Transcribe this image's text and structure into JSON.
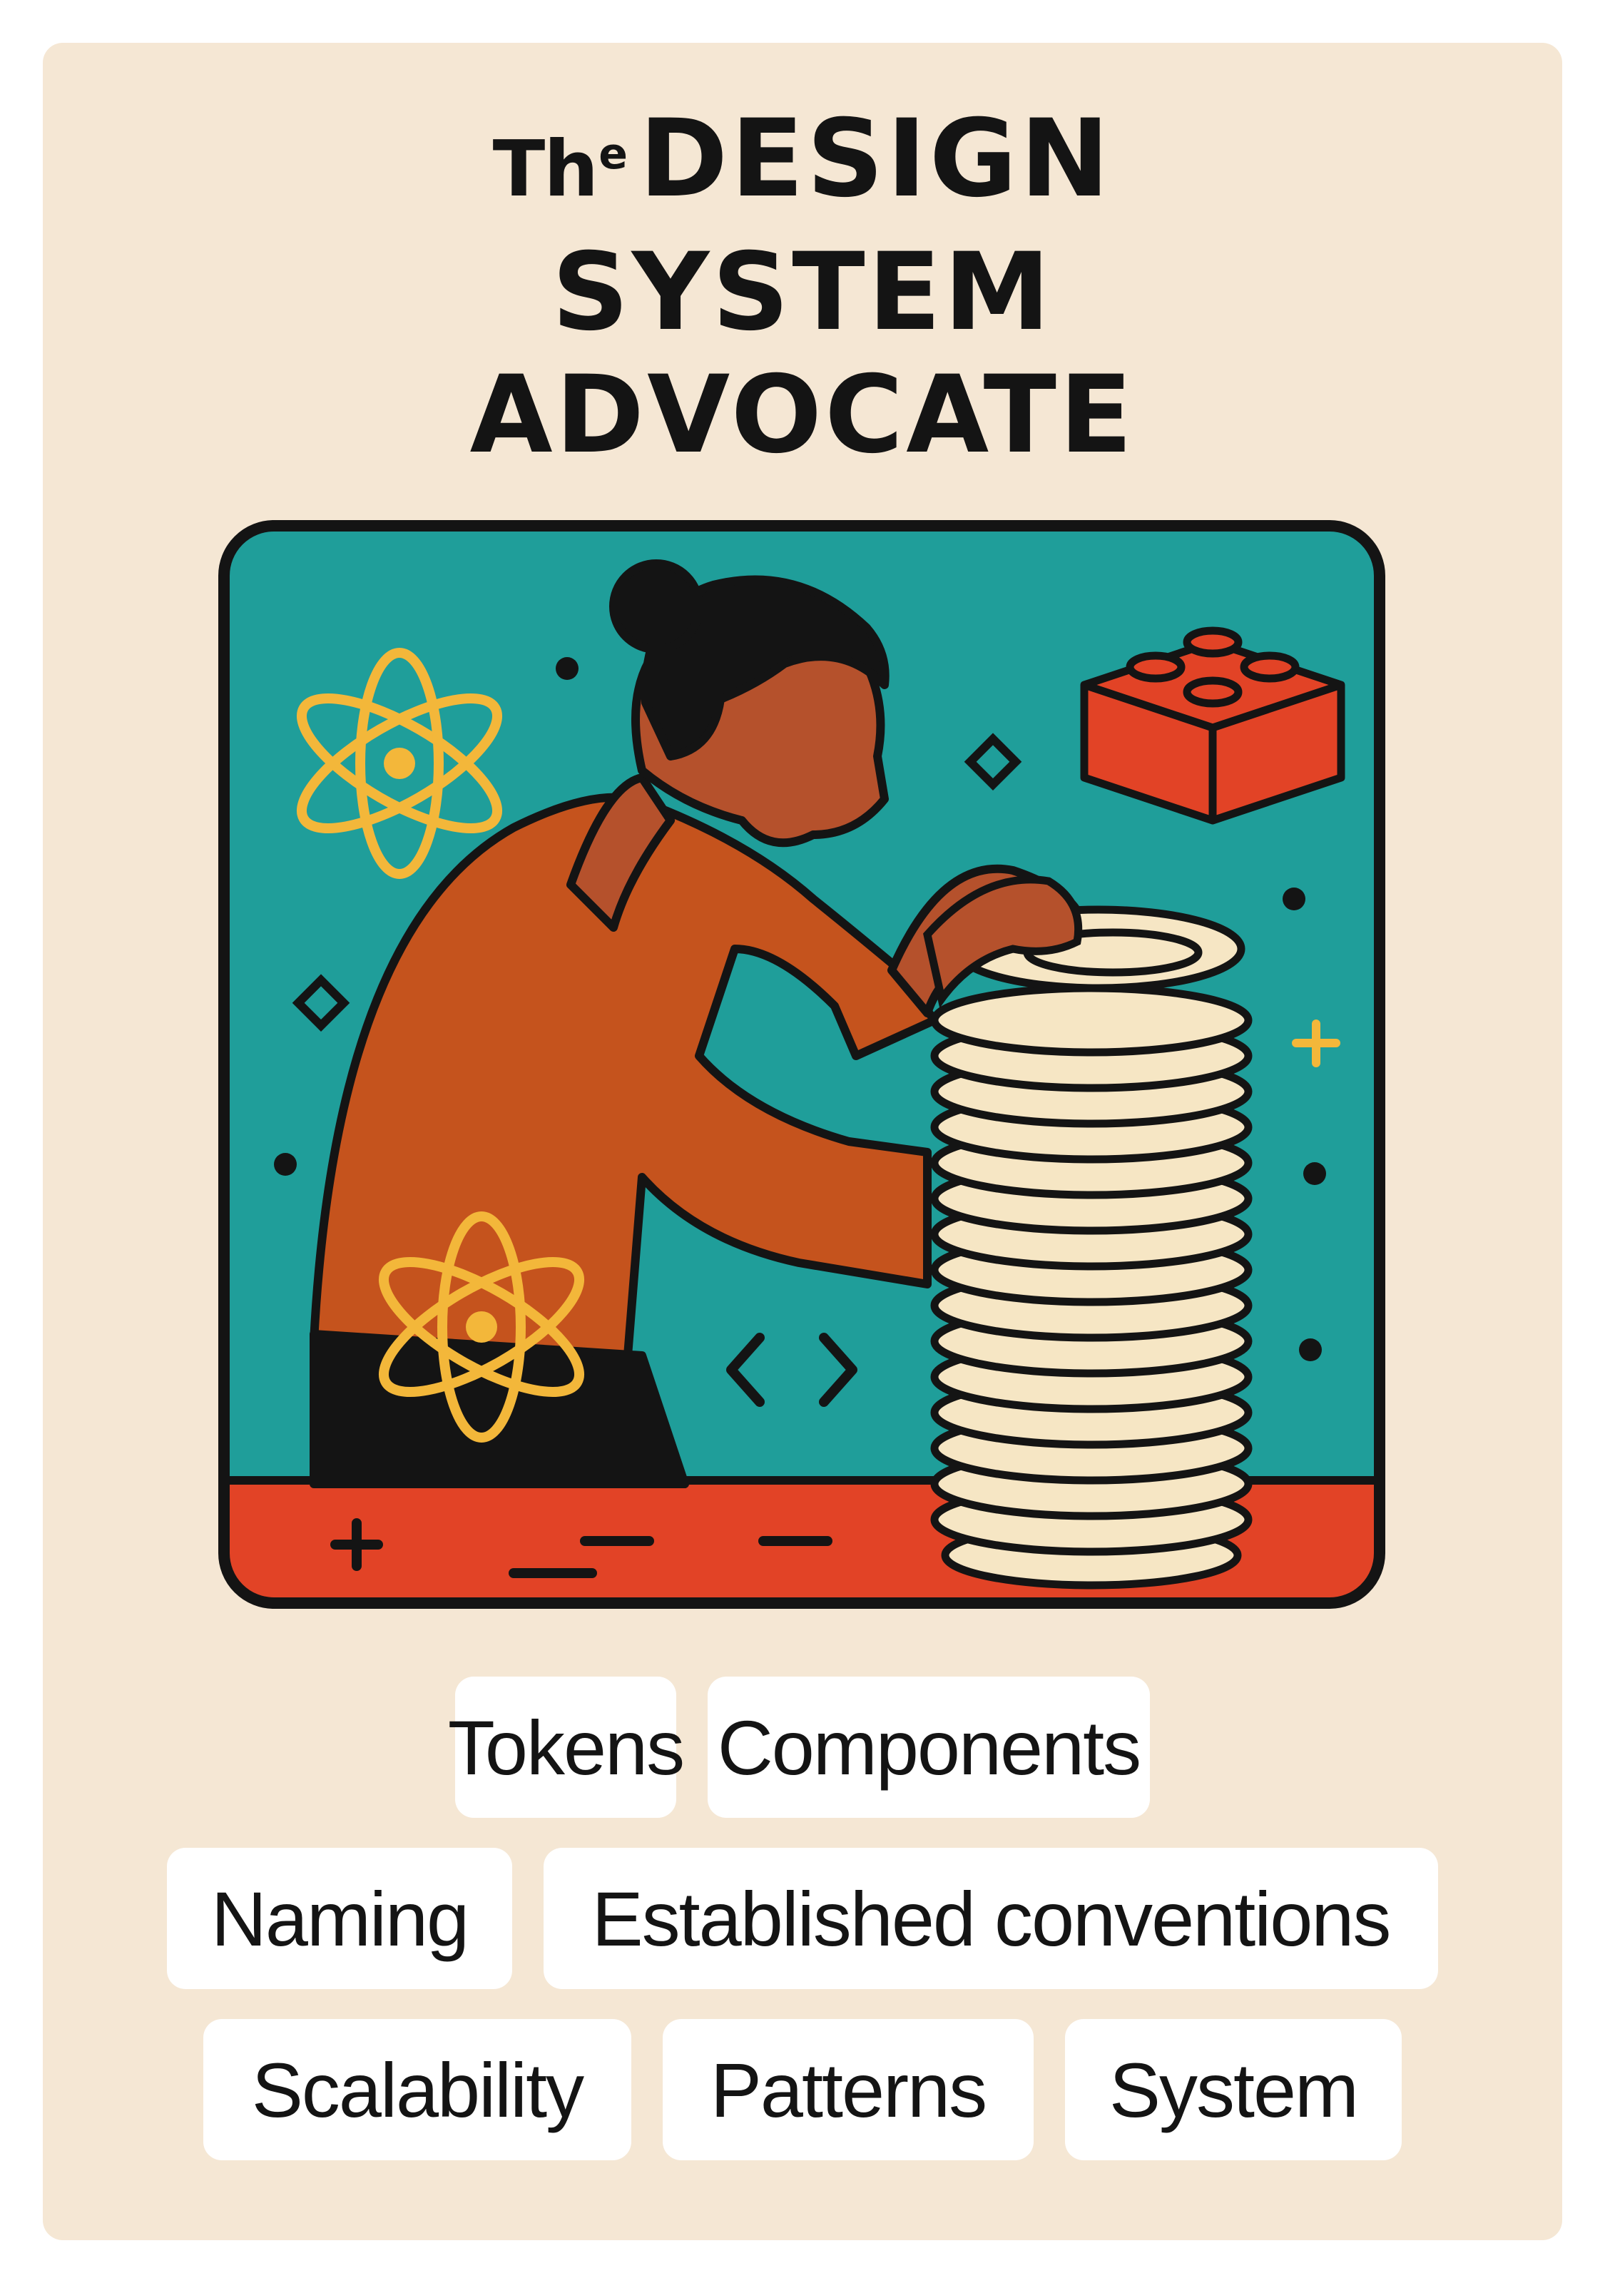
{
  "title": {
    "the": "Th",
    "the_sup": "e",
    "line1": "DESIGN",
    "line2": "SYSTEM",
    "line3": "ADVOCATE"
  },
  "illustration": {
    "subject": "person stacking plates",
    "icons": [
      "atom-icon",
      "lego-brick-icon",
      "code-brackets-icon",
      "plus-icon",
      "diamond-icon",
      "sparkle-icon"
    ]
  },
  "tags": {
    "row1": [
      "Tokens",
      "Components"
    ],
    "row2": [
      "Naming",
      "Established conventions"
    ],
    "row3": [
      "Scalability",
      "Patterns",
      "System"
    ]
  },
  "colors": {
    "background": "#f5e7d4",
    "teal": "#1f9e9a",
    "orange_red": "#e24326",
    "rust": "#c5531d",
    "cream": "#f6e6c4",
    "gold": "#f3b73a",
    "ink": "#141414"
  }
}
